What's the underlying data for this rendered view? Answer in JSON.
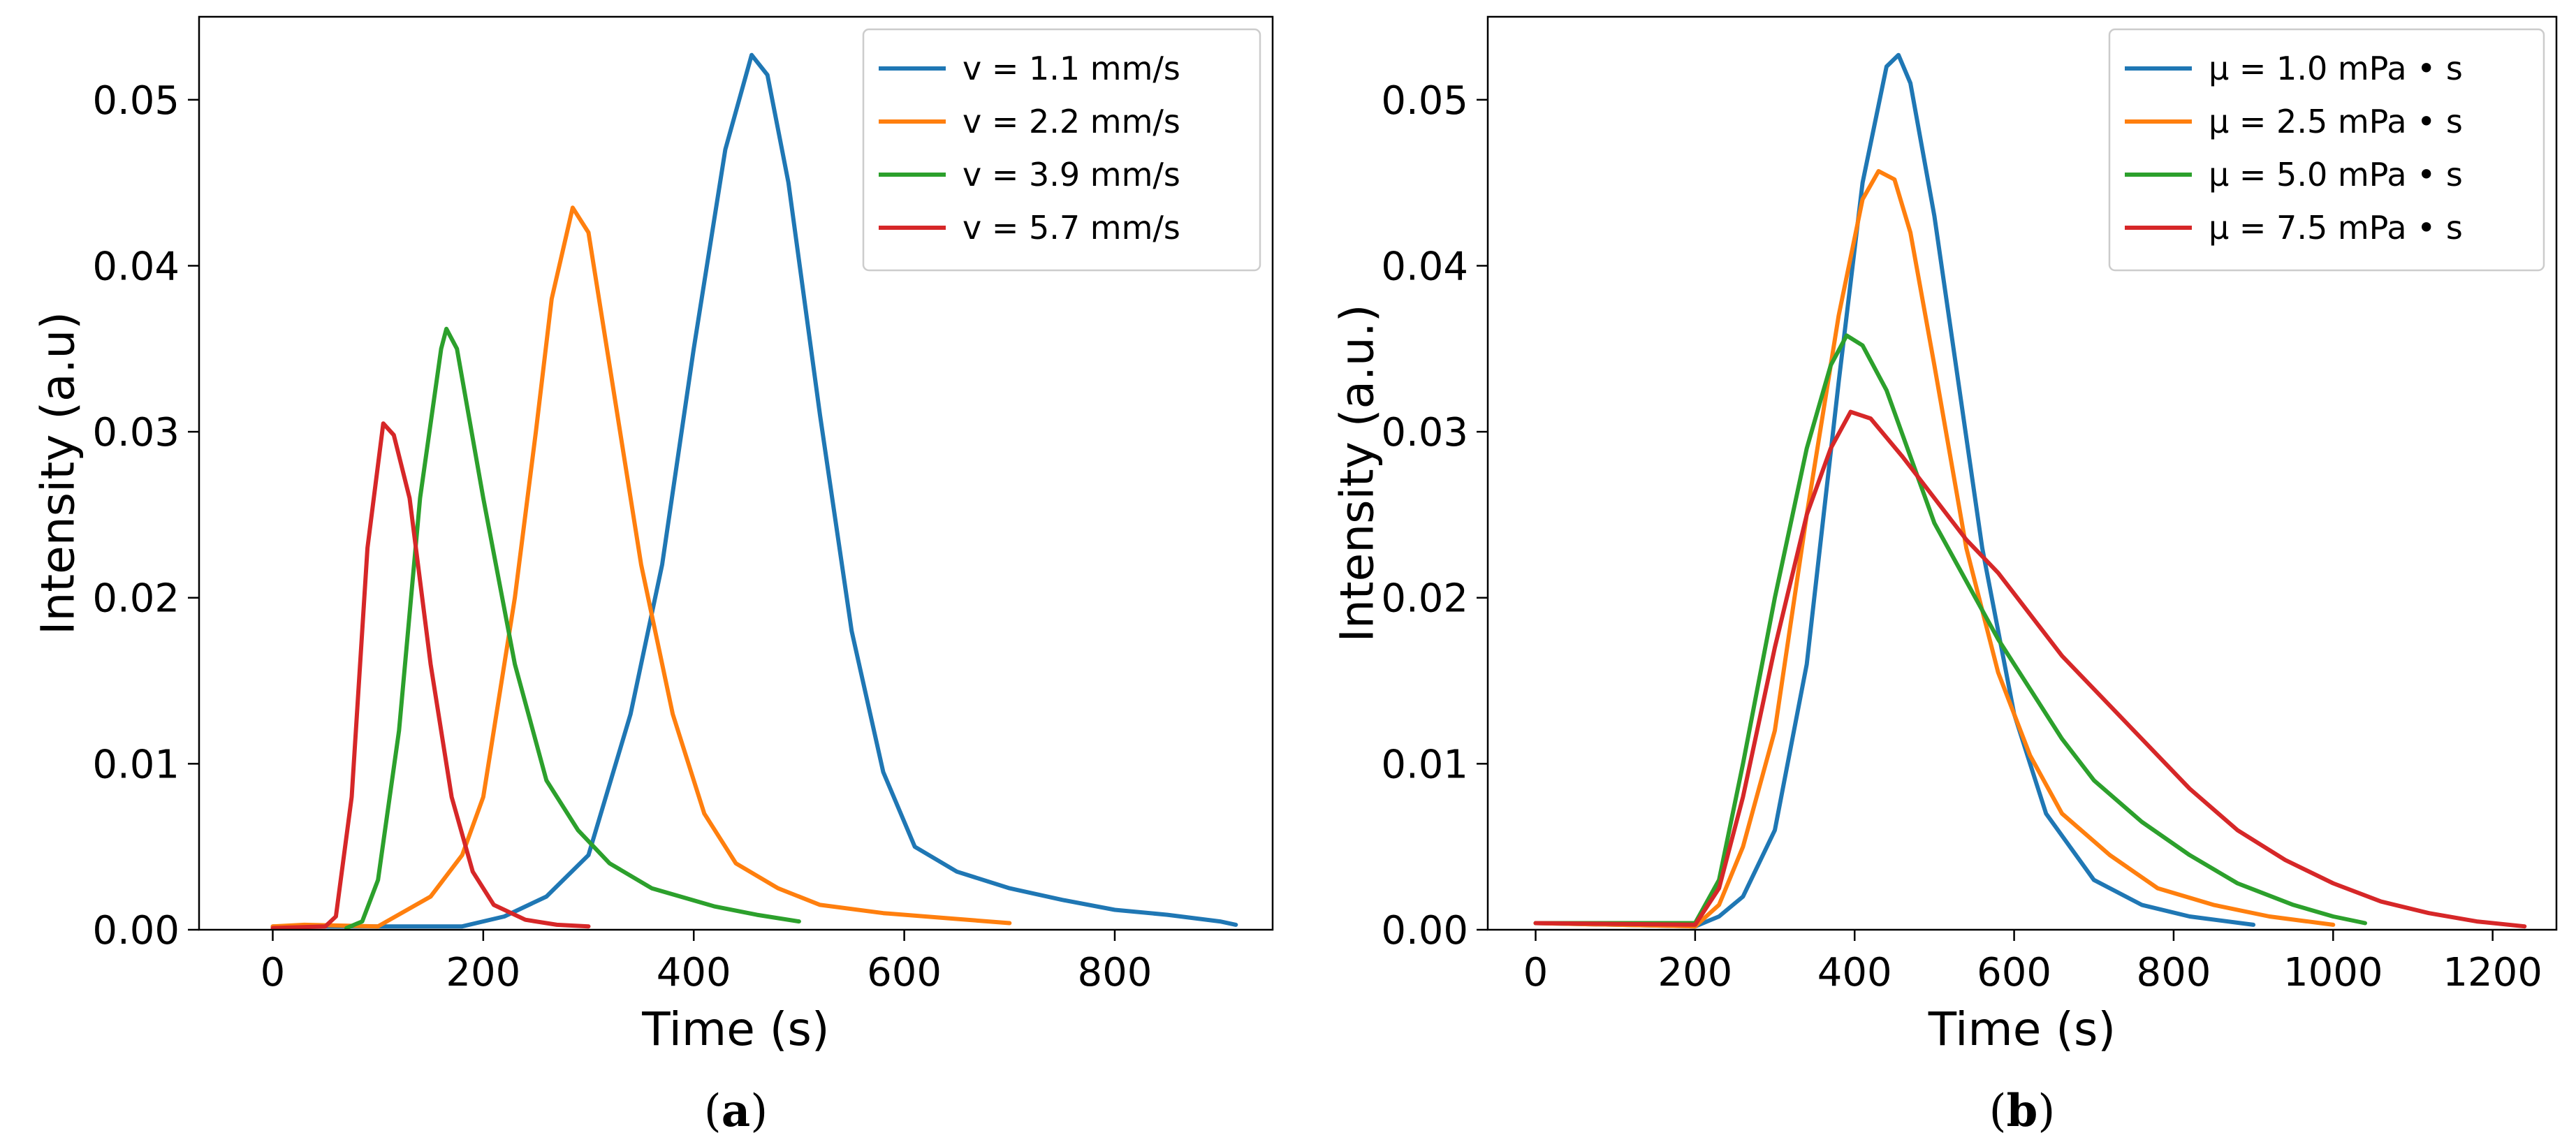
{
  "colors": {
    "blue": "#1f77b4",
    "orange": "#ff7f0e",
    "green": "#2ca02c",
    "red": "#d62728"
  },
  "chart_data": [
    {
      "type": "line",
      "panel_label": "(a)",
      "panel_letter": "a",
      "title": "",
      "xlabel": "Time (s)",
      "ylabel": "Intensity (a.u)",
      "xlim": [
        -70,
        950
      ],
      "ylim": [
        0,
        0.055
      ],
      "xticks": [
        0,
        200,
        400,
        600,
        800
      ],
      "yticks": [
        0.0,
        0.01,
        0.02,
        0.03,
        0.04,
        0.05
      ],
      "ytick_labels": [
        "0.00",
        "0.01",
        "0.02",
        "0.03",
        "0.04",
        "0.05"
      ],
      "legend_position": "top-right",
      "series": [
        {
          "name": "v = 1.1 mm/s",
          "color": "#1f77b4",
          "points": [
            [
              0,
              0.0002
            ],
            [
              180,
              0.0002
            ],
            [
              220,
              0.0008
            ],
            [
              260,
              0.002
            ],
            [
              300,
              0.0045
            ],
            [
              340,
              0.013
            ],
            [
              370,
              0.022
            ],
            [
              400,
              0.035
            ],
            [
              430,
              0.047
            ],
            [
              455,
              0.0527
            ],
            [
              470,
              0.0515
            ],
            [
              490,
              0.045
            ],
            [
              520,
              0.031
            ],
            [
              550,
              0.018
            ],
            [
              580,
              0.0095
            ],
            [
              610,
              0.005
            ],
            [
              650,
              0.0035
            ],
            [
              700,
              0.0025
            ],
            [
              750,
              0.0018
            ],
            [
              800,
              0.0012
            ],
            [
              850,
              0.0009
            ],
            [
              900,
              0.0005
            ],
            [
              915,
              0.0003
            ]
          ]
        },
        {
          "name": "v = 2.2 mm/s",
          "color": "#ff7f0e",
          "points": [
            [
              0,
              0.0002
            ],
            [
              30,
              0.0003
            ],
            [
              100,
              0.0002
            ],
            [
              150,
              0.002
            ],
            [
              180,
              0.0045
            ],
            [
              200,
              0.008
            ],
            [
              230,
              0.02
            ],
            [
              250,
              0.03
            ],
            [
              265,
              0.038
            ],
            [
              285,
              0.0435
            ],
            [
              300,
              0.042
            ],
            [
              320,
              0.034
            ],
            [
              350,
              0.022
            ],
            [
              380,
              0.013
            ],
            [
              410,
              0.007
            ],
            [
              440,
              0.004
            ],
            [
              480,
              0.0025
            ],
            [
              520,
              0.0015
            ],
            [
              580,
              0.001
            ],
            [
              640,
              0.0007
            ],
            [
              700,
              0.0004
            ]
          ]
        },
        {
          "name": "v = 3.9 mm/s",
          "color": "#2ca02c",
          "points": [
            [
              70,
              0.0001
            ],
            [
              85,
              0.0005
            ],
            [
              100,
              0.003
            ],
            [
              120,
              0.012
            ],
            [
              140,
              0.026
            ],
            [
              160,
              0.035
            ],
            [
              165,
              0.0362
            ],
            [
              175,
              0.035
            ],
            [
              200,
              0.026
            ],
            [
              230,
              0.016
            ],
            [
              260,
              0.009
            ],
            [
              290,
              0.006
            ],
            [
              320,
              0.004
            ],
            [
              360,
              0.0025
            ],
            [
              420,
              0.0014
            ],
            [
              460,
              0.0009
            ],
            [
              500,
              0.0005
            ]
          ]
        },
        {
          "name": "v = 5.7 mm/s",
          "color": "#d62728",
          "points": [
            [
              0,
              0.0001
            ],
            [
              50,
              0.0002
            ],
            [
              60,
              0.0008
            ],
            [
              75,
              0.008
            ],
            [
              90,
              0.023
            ],
            [
              105,
              0.0305
            ],
            [
              115,
              0.0298
            ],
            [
              130,
              0.026
            ],
            [
              150,
              0.016
            ],
            [
              170,
              0.008
            ],
            [
              190,
              0.0035
            ],
            [
              210,
              0.0015
            ],
            [
              240,
              0.0006
            ],
            [
              270,
              0.0003
            ],
            [
              300,
              0.0002
            ]
          ]
        }
      ]
    },
    {
      "type": "line",
      "panel_label": "(b)",
      "panel_letter": "b",
      "title": "",
      "xlabel": "Time (s)",
      "ylabel": "Intensity (a.u.)",
      "xlim": [
        -60,
        1280
      ],
      "ylim": [
        0,
        0.055
      ],
      "xticks": [
        0,
        200,
        400,
        600,
        800,
        1000,
        1200
      ],
      "yticks": [
        0.0,
        0.01,
        0.02,
        0.03,
        0.04,
        0.05
      ],
      "ytick_labels": [
        "0.00",
        "0.01",
        "0.02",
        "0.03",
        "0.04",
        "0.05"
      ],
      "legend_position": "top-right",
      "series": [
        {
          "name": "μ = 1.0 mPa • s",
          "color": "#1f77b4",
          "points": [
            [
              0,
              0.0004
            ],
            [
              200,
              0.0002
            ],
            [
              230,
              0.0008
            ],
            [
              260,
              0.002
            ],
            [
              300,
              0.006
            ],
            [
              340,
              0.016
            ],
            [
              380,
              0.033
            ],
            [
              410,
              0.045
            ],
            [
              440,
              0.052
            ],
            [
              455,
              0.0527
            ],
            [
              470,
              0.051
            ],
            [
              500,
              0.043
            ],
            [
              530,
              0.033
            ],
            [
              560,
              0.023
            ],
            [
              600,
              0.013
            ],
            [
              640,
              0.007
            ],
            [
              700,
              0.003
            ],
            [
              760,
              0.0015
            ],
            [
              820,
              0.0008
            ],
            [
              900,
              0.0003
            ]
          ]
        },
        {
          "name": "μ = 2.5 mPa • s",
          "color": "#ff7f0e",
          "points": [
            [
              0,
              0.0004
            ],
            [
              200,
              0.0002
            ],
            [
              230,
              0.0015
            ],
            [
              260,
              0.005
            ],
            [
              300,
              0.012
            ],
            [
              340,
              0.025
            ],
            [
              380,
              0.037
            ],
            [
              410,
              0.044
            ],
            [
              430,
              0.0457
            ],
            [
              450,
              0.0452
            ],
            [
              470,
              0.042
            ],
            [
              500,
              0.034
            ],
            [
              540,
              0.023
            ],
            [
              580,
              0.0155
            ],
            [
              620,
              0.0105
            ],
            [
              660,
              0.007
            ],
            [
              720,
              0.0045
            ],
            [
              780,
              0.0025
            ],
            [
              850,
              0.0015
            ],
            [
              920,
              0.0008
            ],
            [
              1000,
              0.0003
            ]
          ]
        },
        {
          "name": "μ = 5.0 mPa • s",
          "color": "#2ca02c",
          "points": [
            [
              0,
              0.0004
            ],
            [
              200,
              0.0004
            ],
            [
              230,
              0.003
            ],
            [
              260,
              0.01
            ],
            [
              300,
              0.02
            ],
            [
              340,
              0.029
            ],
            [
              370,
              0.034
            ],
            [
              390,
              0.0358
            ],
            [
              410,
              0.0352
            ],
            [
              440,
              0.0325
            ],
            [
              470,
              0.0285
            ],
            [
              500,
              0.0245
            ],
            [
              540,
              0.021
            ],
            [
              580,
              0.0175
            ],
            [
              620,
              0.0145
            ],
            [
              660,
              0.0115
            ],
            [
              700,
              0.009
            ],
            [
              760,
              0.0065
            ],
            [
              820,
              0.0045
            ],
            [
              880,
              0.0028
            ],
            [
              950,
              0.0015
            ],
            [
              1000,
              0.0008
            ],
            [
              1040,
              0.0004
            ]
          ]
        },
        {
          "name": "μ = 7.5 mPa • s",
          "color": "#d62728",
          "points": [
            [
              0,
              0.0004
            ],
            [
              200,
              0.0003
            ],
            [
              230,
              0.0025
            ],
            [
              260,
              0.008
            ],
            [
              300,
              0.017
            ],
            [
              340,
              0.025
            ],
            [
              370,
              0.029
            ],
            [
              395,
              0.0312
            ],
            [
              420,
              0.0308
            ],
            [
              460,
              0.0285
            ],
            [
              500,
              0.026
            ],
            [
              540,
              0.0235
            ],
            [
              580,
              0.0215
            ],
            [
              620,
              0.019
            ],
            [
              660,
              0.0165
            ],
            [
              700,
              0.0145
            ],
            [
              760,
              0.0115
            ],
            [
              820,
              0.0085
            ],
            [
              880,
              0.006
            ],
            [
              940,
              0.0042
            ],
            [
              1000,
              0.0028
            ],
            [
              1060,
              0.0017
            ],
            [
              1120,
              0.001
            ],
            [
              1180,
              0.0005
            ],
            [
              1240,
              0.0002
            ]
          ]
        }
      ]
    }
  ]
}
